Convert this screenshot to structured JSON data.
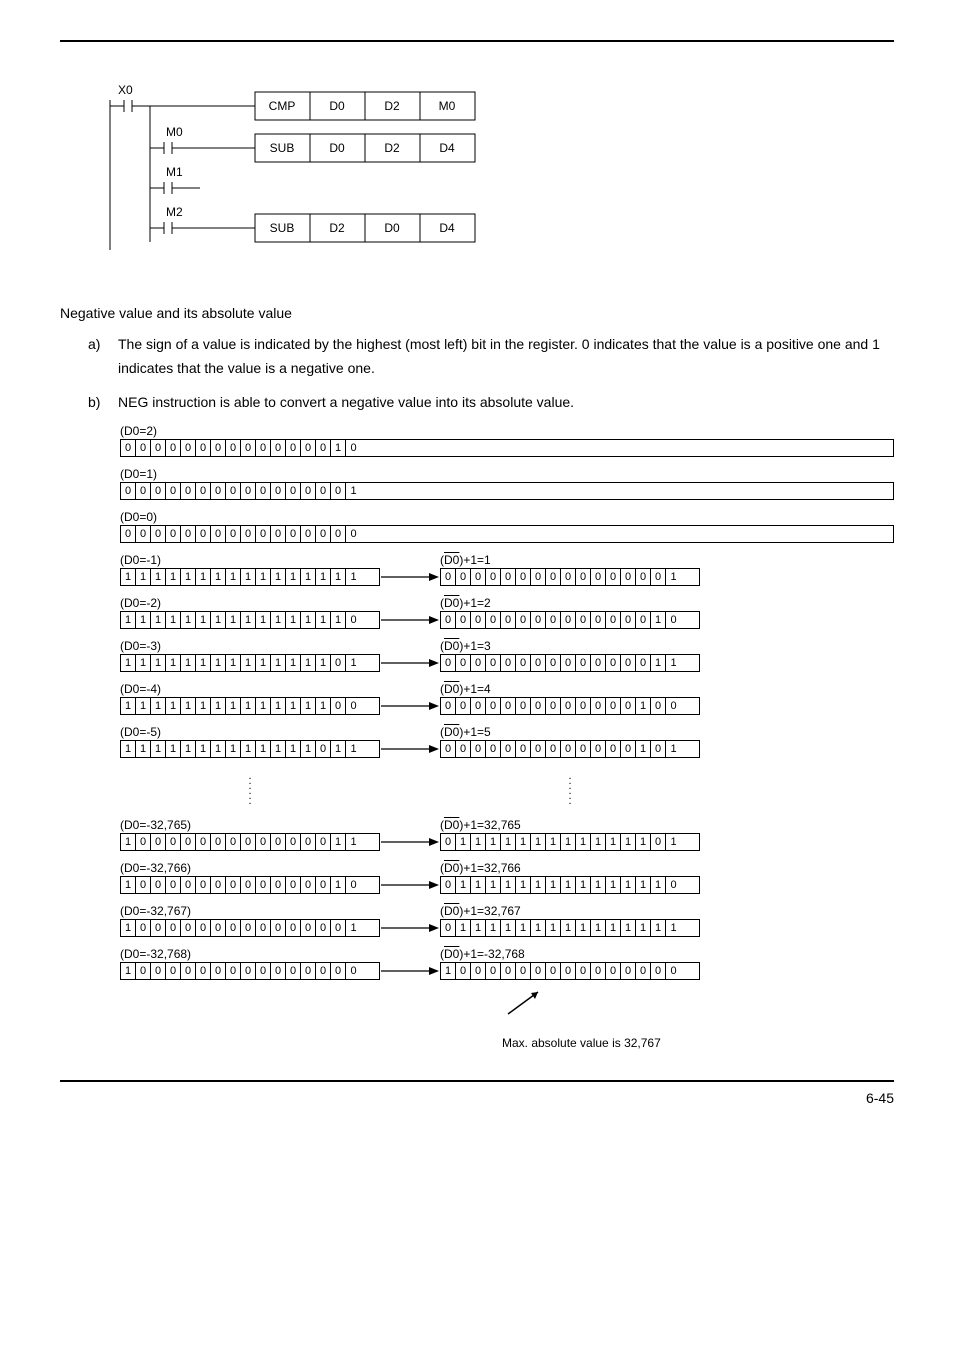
{
  "page_number": "6-45",
  "ladder": {
    "x0": "X0",
    "m0": "M0",
    "m1": "M1",
    "m2": "M2",
    "rows": [
      [
        "CMP",
        "D0",
        "D2",
        "M0"
      ],
      [
        "SUB",
        "D0",
        "D2",
        "D4"
      ],
      [
        "SUB",
        "D2",
        "D0",
        "D4"
      ]
    ]
  },
  "text": {
    "section_title": "Negative value and its absolute value",
    "item_a_marker": "a)",
    "item_a": "The sign of a value is indicated by the highest (most left) bit in the register. 0 indicates that the value is a positive one and 1 indicates that the value is a negative one.",
    "item_b_marker": "b)",
    "item_b": "NEG instruction is able to convert a negative value into its absolute value."
  },
  "bit_rows_single": [
    {
      "label": "(D0=2)",
      "bits": "0000000000000010"
    },
    {
      "label": "(D0=1)",
      "bits": "0000000000000001"
    },
    {
      "label": "(D0=0)",
      "bits": "0000000000000000"
    }
  ],
  "bit_rows_pairs": [
    {
      "left_label": "(D0=-1)",
      "left": "1111111111111111",
      "right_label": "(D0)+1=1",
      "right": "0000000000000001"
    },
    {
      "left_label": "(D0=-2)",
      "left": "1111111111111110",
      "right_label": "(D0)+1=2",
      "right": "0000000000000010"
    },
    {
      "left_label": "(D0=-3)",
      "left": "1111111111111101",
      "right_label": "(D0)+1=3",
      "right": "0000000000000011"
    },
    {
      "left_label": "(D0=-4)",
      "left": "1111111111111100",
      "right_label": "(D0)+1=4",
      "right": "0000000000000100"
    },
    {
      "left_label": "(D0=-5)",
      "left": "1111111111111011",
      "right_label": "(D0)+1=5",
      "right": "0000000000000101"
    }
  ],
  "bit_rows_pairs2": [
    {
      "left_label": "(D0=-32,765)",
      "left": "1000000000000011",
      "right_label": "(D0)+1=32,765",
      "right": "0111111111111101"
    },
    {
      "left_label": "(D0=-32,766)",
      "left": "1000000000000010",
      "right_label": "(D0)+1=32,766",
      "right": "0111111111111110"
    },
    {
      "left_label": "(D0=-32,767)",
      "left": "1000000000000001",
      "right_label": "(D0)+1=32,767",
      "right": "0111111111111111"
    },
    {
      "left_label": "(D0=-32,768)",
      "left": "1000000000000000",
      "right_label": "(D0)+1=-32,768",
      "right": "1000000000000000"
    }
  ],
  "footer_note": "Max. absolute value is 32,767",
  "colors": {
    "line": "#000000",
    "bg": "#ffffff"
  }
}
